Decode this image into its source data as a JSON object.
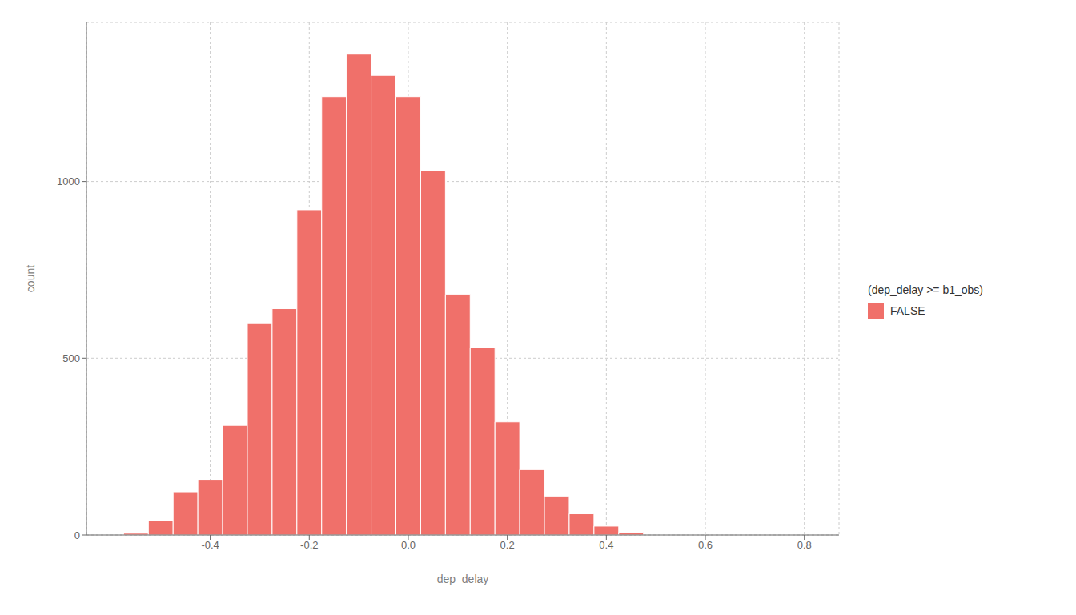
{
  "chart_data": {
    "type": "histogram",
    "xlabel": "dep_delay",
    "ylabel": "count",
    "bins": [
      -0.575,
      -0.525,
      -0.475,
      -0.425,
      -0.375,
      -0.325,
      -0.275,
      -0.225,
      -0.175,
      -0.125,
      -0.075,
      -0.025,
      0.025,
      0.075,
      0.125,
      0.175,
      0.225,
      0.275,
      0.325,
      0.375,
      0.425,
      0.475
    ],
    "series": [
      {
        "name": "FALSE",
        "color": "#F0706A",
        "values": [
          5,
          40,
          120,
          155,
          310,
          600,
          640,
          920,
          1240,
          1360,
          1300,
          1240,
          1030,
          680,
          530,
          320,
          185,
          108,
          60,
          25,
          8
        ]
      }
    ],
    "legend_title": "(dep_delay >= b1_obs)",
    "legend": "right",
    "grid": true,
    "xlim": [
      -0.65,
      0.87
    ],
    "ylim": [
      0,
      1450
    ],
    "xticks": [
      {
        "value": -0.4,
        "label": "-0.4"
      },
      {
        "value": -0.2,
        "label": "-0.2"
      },
      {
        "value": 0,
        "label": "0.0"
      },
      0.2,
      0.4,
      0.6,
      0.8
    ],
    "yticks": [
      0,
      500,
      1000
    ]
  }
}
